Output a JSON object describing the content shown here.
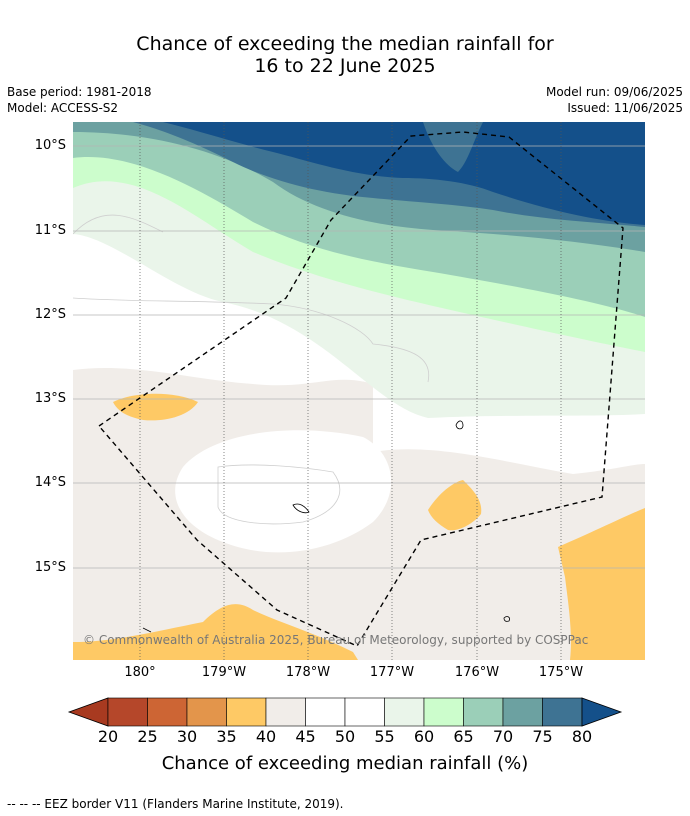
{
  "title_line1": "Chance of exceeding the median rainfall for",
  "title_line2": "16 to 22 June 2025",
  "base_period": "Base period: 1981-2018",
  "model": "Model: ACCESS-S2",
  "model_run": "Model run: 09/06/2025",
  "issued": "Issued: 11/06/2025",
  "lat_labels": [
    "10°S",
    "11°S",
    "12°S",
    "13°S",
    "14°S",
    "15°S"
  ],
  "lon_labels": [
    "180°",
    "179°W",
    "178°W",
    "177°W",
    "176°W",
    "175°W"
  ],
  "copyright": "© Commonwealth of Australia 2025, Bureau of Meteorology, supported by COSPPac",
  "colorbar": {
    "ticks": [
      "20",
      "25",
      "30",
      "35",
      "40",
      "45",
      "50",
      "55",
      "60",
      "65",
      "70",
      "75",
      "80"
    ],
    "colors": [
      "#a83a20",
      "#b5472a",
      "#cd6534",
      "#e3954b",
      "#fec965",
      "#f1ede9",
      "#ffffff",
      "#ffffff",
      "#eaf5ea",
      "#ccfdcc",
      "#9bcfb8",
      "#6ca1a1",
      "#3e7393",
      "#14508a"
    ],
    "title": "Chance of exceeding median rainfall (%)"
  },
  "footer": "--  --  -- EEZ border V11 (Flanders Marine Institute, 2019)."
}
